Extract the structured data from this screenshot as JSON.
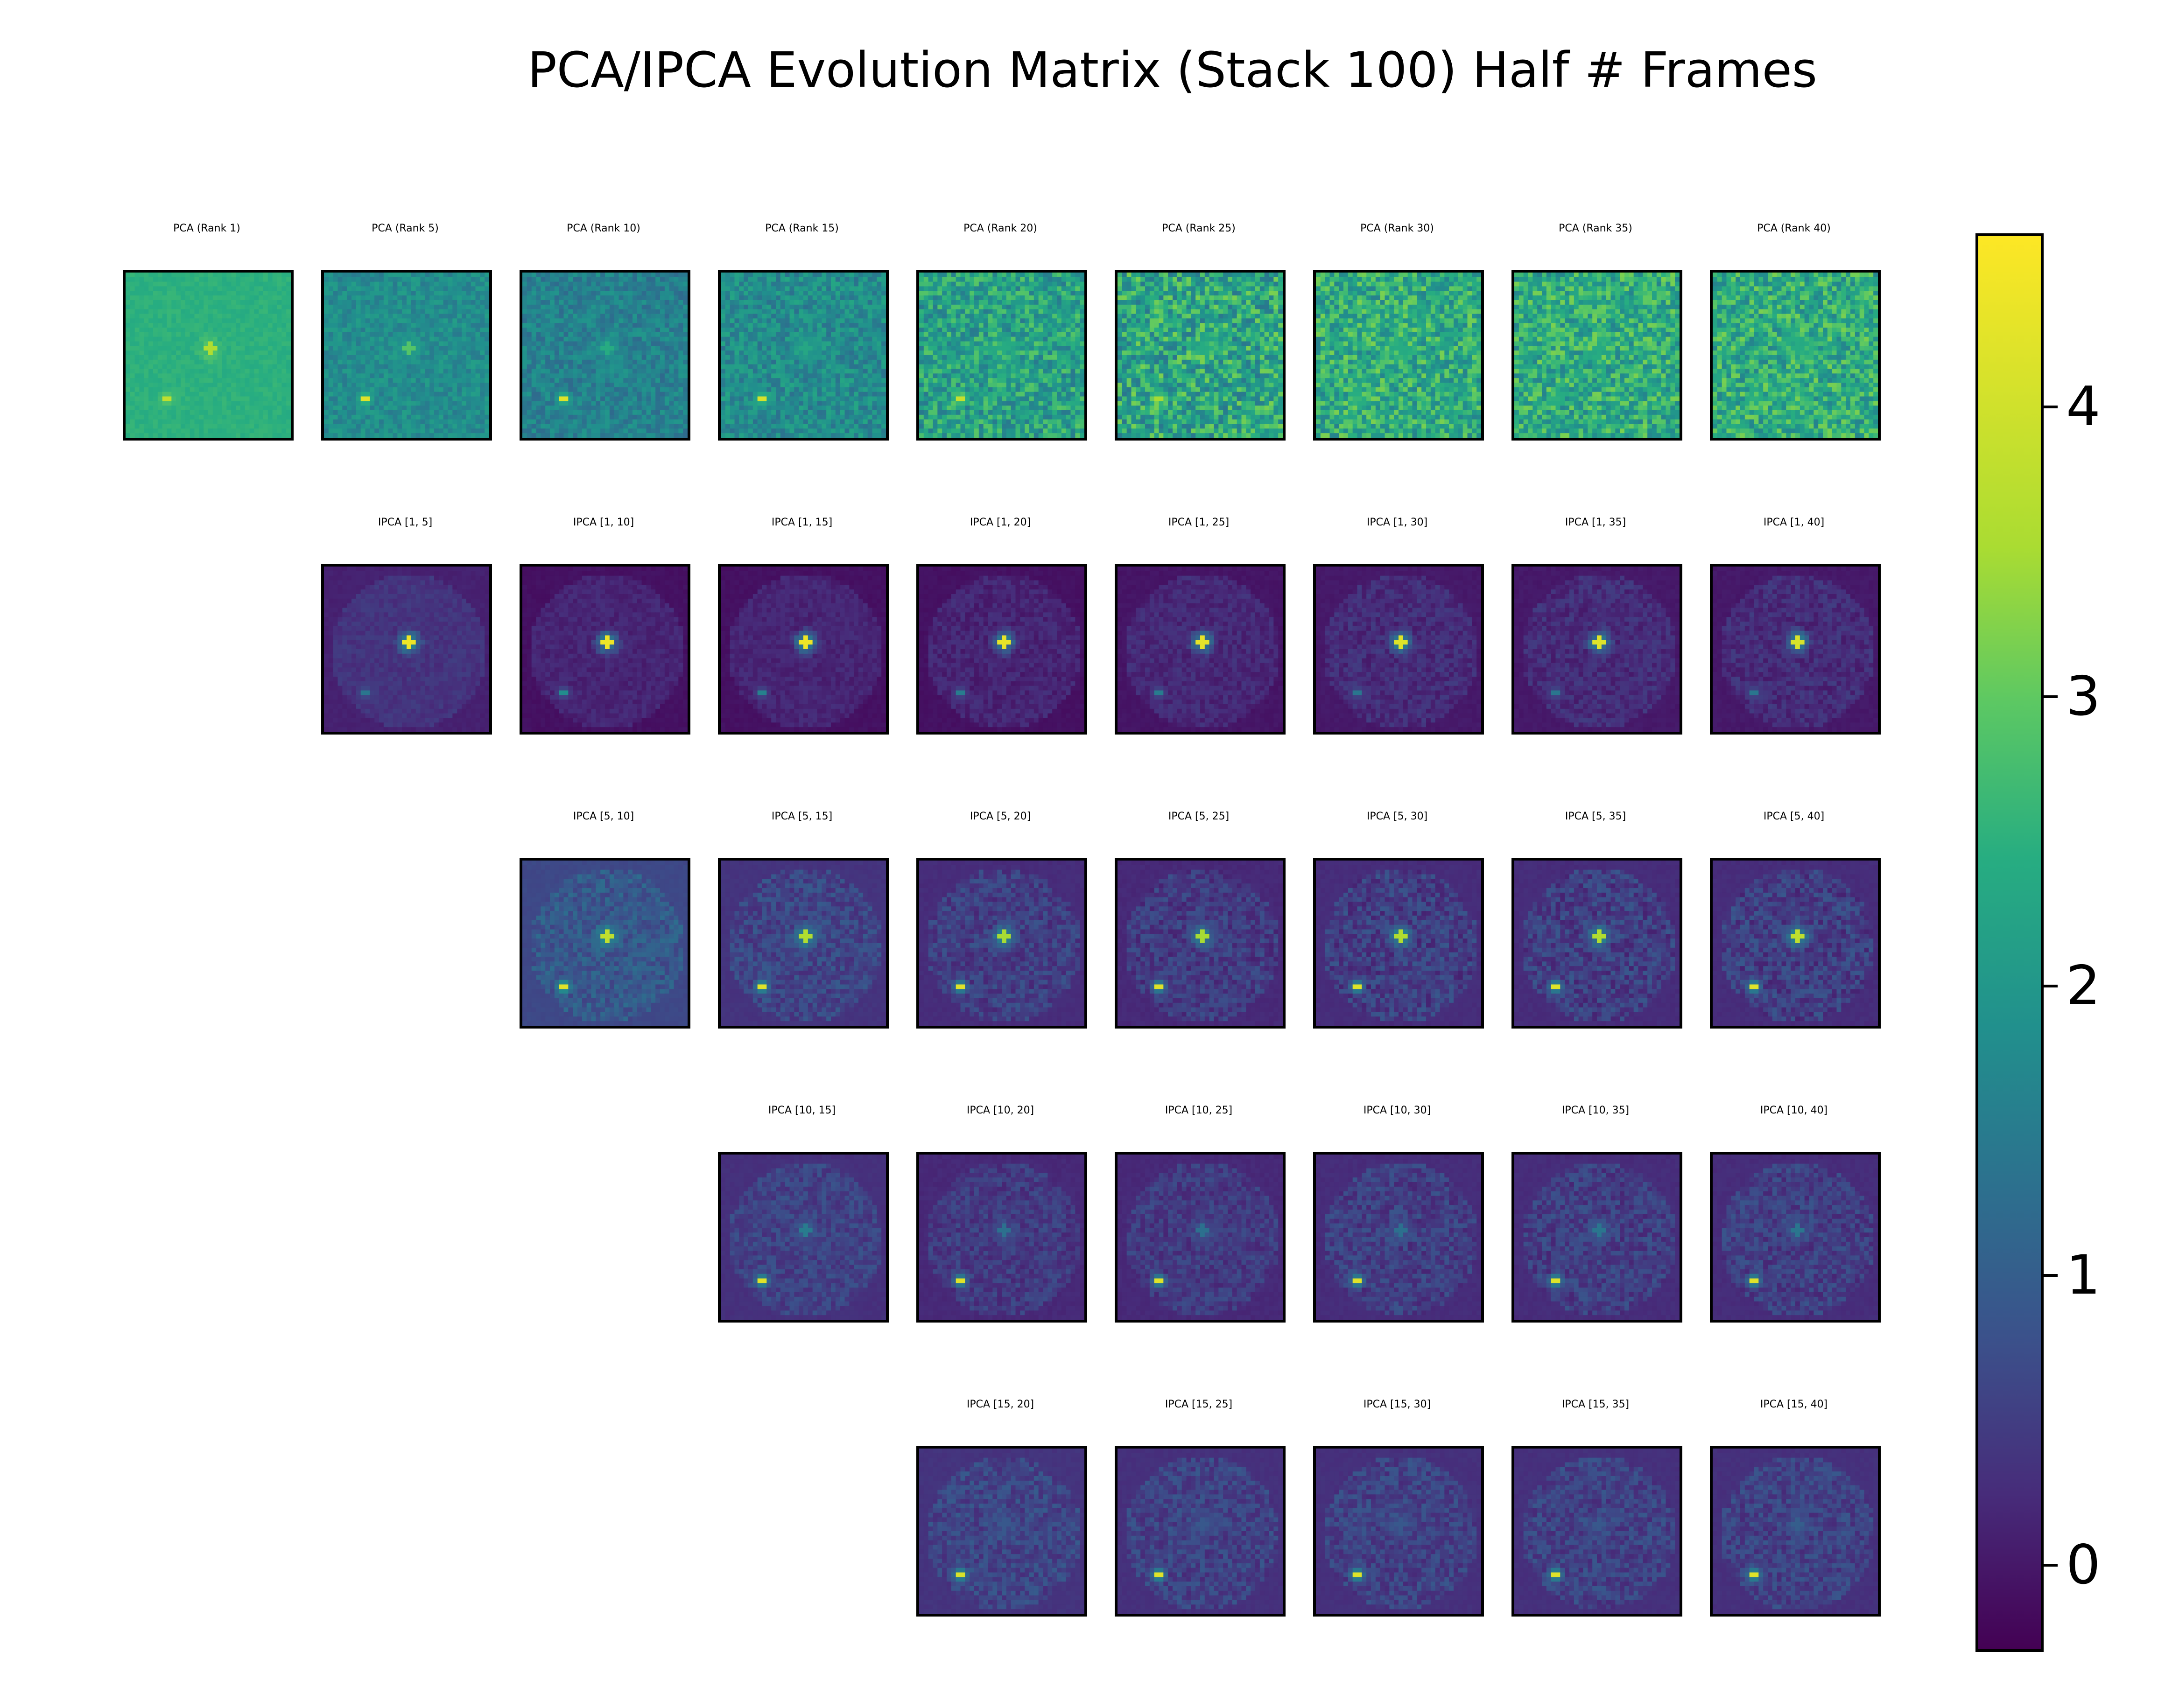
{
  "chart_data": {
    "type": "heatmap",
    "title": "PCA/IPCA Evolution Matrix (Stack 100) Half # Frames",
    "colormap": "viridis",
    "colorbar": {
      "min": -0.3,
      "max": 4.6,
      "ticks": [
        0,
        1,
        2,
        3,
        4
      ],
      "tick_labels": [
        "0",
        "1",
        "2",
        "3",
        "4"
      ]
    },
    "columns": [
      1,
      5,
      10,
      15,
      20,
      25,
      30,
      35,
      40
    ],
    "rows": [
      {
        "row_start": 0,
        "panels": [
          {
            "col": 0,
            "title": "PCA (Rank 1)",
            "bg": 2.5,
            "noise": 0.12,
            "center": 3.6,
            "companion": 3.8
          },
          {
            "col": 1,
            "title": "PCA (Rank 5)",
            "bg": 1.8,
            "noise": 0.35,
            "center": 2.9,
            "companion": 4.2
          },
          {
            "col": 2,
            "title": "PCA (Rank 10)",
            "bg": 1.6,
            "noise": 0.4,
            "center": 2.4,
            "companion": 4.2
          },
          {
            "col": 3,
            "title": "PCA (Rank 15)",
            "bg": 1.8,
            "noise": 0.5,
            "center": 2.3,
            "companion": 4.1
          },
          {
            "col": 4,
            "title": "PCA (Rank 20)",
            "bg": 2.2,
            "noise": 0.75,
            "center": 2.4,
            "companion": 3.9
          },
          {
            "col": 5,
            "title": "PCA (Rank 25)",
            "bg": 2.3,
            "noise": 0.9,
            "center": 2.4,
            "companion": 3.5
          },
          {
            "col": 6,
            "title": "PCA (Rank 30)",
            "bg": 2.4,
            "noise": 0.8,
            "center": 2.4,
            "companion": 2.6
          },
          {
            "col": 7,
            "title": "PCA (Rank 35)",
            "bg": 2.4,
            "noise": 0.8,
            "center": 2.4,
            "companion": 2.5
          },
          {
            "col": 8,
            "title": "PCA (Rank 40)",
            "bg": 2.4,
            "noise": 0.8,
            "center": 2.4,
            "companion": 2.5
          }
        ]
      },
      {
        "row_start": 1,
        "panels": [
          {
            "col": 1,
            "title": "IPCA [1, 5]",
            "bg": 0.35,
            "noise": 0.15,
            "center": 4.4,
            "companion": 1.4
          },
          {
            "col": 2,
            "title": "IPCA [1, 10]",
            "bg": 0.15,
            "noise": 0.15,
            "center": 4.4,
            "companion": 1.8
          },
          {
            "col": 3,
            "title": "IPCA [1, 15]",
            "bg": 0.15,
            "noise": 0.15,
            "center": 4.4,
            "companion": 1.6
          },
          {
            "col": 4,
            "title": "IPCA [1, 20]",
            "bg": 0.15,
            "noise": 0.2,
            "center": 4.3,
            "companion": 1.5
          },
          {
            "col": 5,
            "title": "IPCA [1, 25]",
            "bg": 0.2,
            "noise": 0.2,
            "center": 4.3,
            "companion": 1.5
          },
          {
            "col": 6,
            "title": "IPCA [1, 30]",
            "bg": 0.25,
            "noise": 0.25,
            "center": 4.2,
            "companion": 1.4
          },
          {
            "col": 7,
            "title": "IPCA [1, 35]",
            "bg": 0.25,
            "noise": 0.25,
            "center": 4.2,
            "companion": 1.4
          },
          {
            "col": 8,
            "title": "IPCA [1, 40]",
            "bg": 0.25,
            "noise": 0.25,
            "center": 4.1,
            "companion": 1.4
          }
        ]
      },
      {
        "row_start": 2,
        "panels": [
          {
            "col": 2,
            "title": "IPCA [5, 10]",
            "bg": 0.9,
            "noise": 0.35,
            "center": 3.8,
            "companion": 4.2
          },
          {
            "col": 3,
            "title": "IPCA [5, 15]",
            "bg": 0.6,
            "noise": 0.35,
            "center": 3.6,
            "companion": 4.2
          },
          {
            "col": 4,
            "title": "IPCA [5, 20]",
            "bg": 0.5,
            "noise": 0.35,
            "center": 3.5,
            "companion": 4.2
          },
          {
            "col": 5,
            "title": "IPCA [5, 25]",
            "bg": 0.45,
            "noise": 0.35,
            "center": 3.5,
            "companion": 4.2
          },
          {
            "col": 6,
            "title": "IPCA [5, 30]",
            "bg": 0.5,
            "noise": 0.4,
            "center": 3.6,
            "companion": 4.2
          },
          {
            "col": 7,
            "title": "IPCA [5, 35]",
            "bg": 0.5,
            "noise": 0.4,
            "center": 3.6,
            "companion": 4.2
          },
          {
            "col": 8,
            "title": "IPCA [5, 40]",
            "bg": 0.5,
            "noise": 0.4,
            "center": 3.8,
            "companion": 4.2
          }
        ]
      },
      {
        "row_start": 3,
        "panels": [
          {
            "col": 3,
            "title": "IPCA [10, 15]",
            "bg": 0.55,
            "noise": 0.3,
            "center": 1.5,
            "companion": 4.2
          },
          {
            "col": 4,
            "title": "IPCA [10, 20]",
            "bg": 0.45,
            "noise": 0.3,
            "center": 1.3,
            "companion": 4.2
          },
          {
            "col": 5,
            "title": "IPCA [10, 25]",
            "bg": 0.45,
            "noise": 0.3,
            "center": 1.3,
            "companion": 4.2
          },
          {
            "col": 6,
            "title": "IPCA [10, 30]",
            "bg": 0.5,
            "noise": 0.35,
            "center": 1.3,
            "companion": 4.2
          },
          {
            "col": 7,
            "title": "IPCA [10, 35]",
            "bg": 0.5,
            "noise": 0.35,
            "center": 1.4,
            "companion": 4.2
          },
          {
            "col": 8,
            "title": "IPCA [10, 40]",
            "bg": 0.5,
            "noise": 0.35,
            "center": 1.4,
            "companion": 4.2
          }
        ]
      },
      {
        "row_start": 4,
        "panels": [
          {
            "col": 4,
            "title": "IPCA [15, 20]",
            "bg": 0.6,
            "noise": 0.35,
            "center": 0.9,
            "companion": 4.1
          },
          {
            "col": 5,
            "title": "IPCA [15, 25]",
            "bg": 0.55,
            "noise": 0.35,
            "center": 0.9,
            "companion": 4.2
          },
          {
            "col": 6,
            "title": "IPCA [15, 30]",
            "bg": 0.55,
            "noise": 0.35,
            "center": 0.9,
            "companion": 4.2
          },
          {
            "col": 7,
            "title": "IPCA [15, 35]",
            "bg": 0.55,
            "noise": 0.35,
            "center": 0.9,
            "companion": 4.2
          },
          {
            "col": 8,
            "title": "IPCA [15, 40]",
            "bg": 0.55,
            "noise": 0.35,
            "center": 1.0,
            "companion": 4.2
          }
        ]
      }
    ]
  }
}
